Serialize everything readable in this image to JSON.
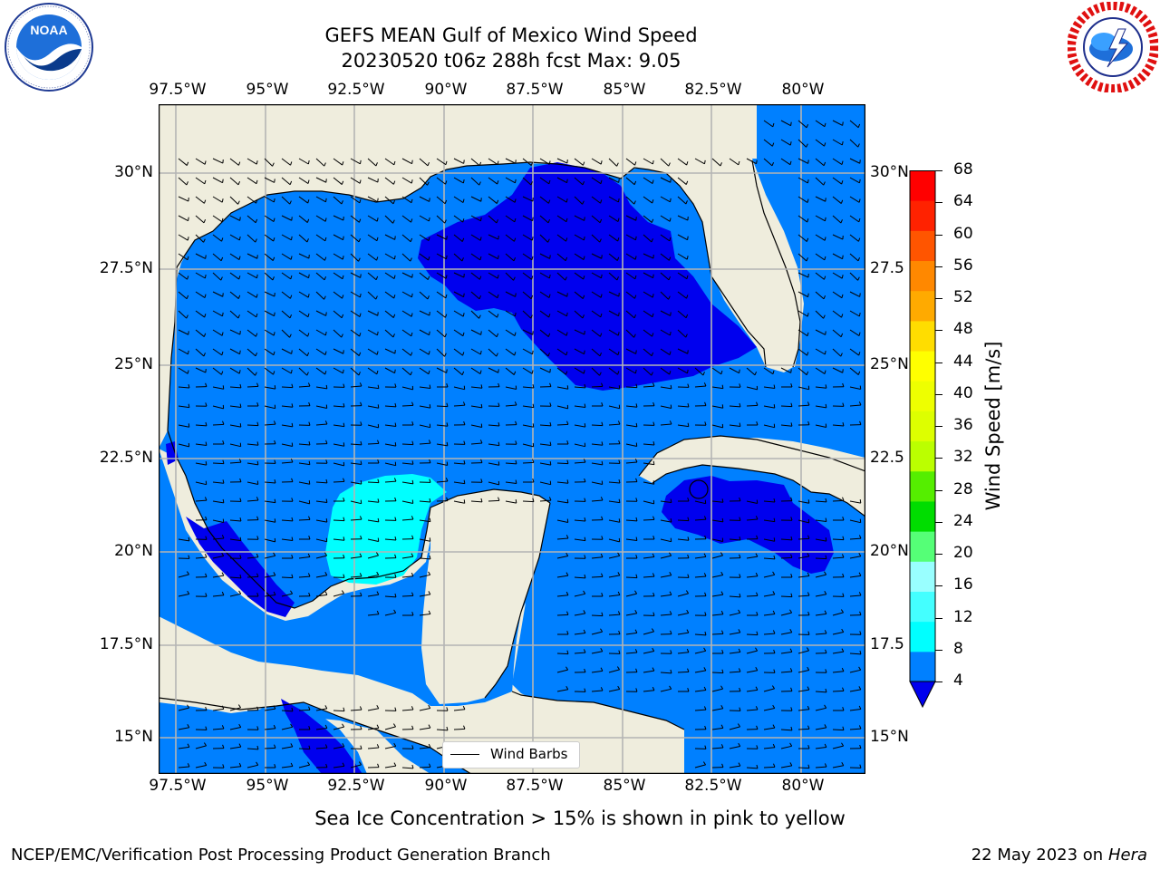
{
  "header": {
    "title_line1": "GEFS MEAN Gulf of Mexico Wind Speed",
    "title_line2": "20230520 t06z 288h fcst   Max: 9.05"
  },
  "logos": {
    "left": {
      "icon": "noaa-logo",
      "text": "NOAA",
      "ring_text": "NATIONAL OCEANIC AND ATMOSPHERIC ADMINISTRATION · U.S. DEPARTMENT OF COMMERCE"
    },
    "right": {
      "icon": "nws-logo",
      "ring_text": "NATIONAL WEATHER SERVICE"
    }
  },
  "map": {
    "lon_labels": [
      "97.5°W",
      "95°W",
      "92.5°W",
      "90°W",
      "87.5°W",
      "85°W",
      "82.5°W",
      "80°W"
    ],
    "lat_labels_left": [
      "30°N",
      "27.5°N",
      "25°N",
      "22.5°N",
      "20°N",
      "17.5°N",
      "15°N"
    ],
    "lat_labels_right": [
      "30°N",
      "27.5",
      "25°N",
      "22.5",
      "20°N",
      "17.5",
      "15°N"
    ],
    "legend_label": "Wind Barbs",
    "colors": {
      "land": "#efeddd",
      "band_4_8": "#0080ff",
      "below_4": "#0000ee",
      "band_8_12": "#00ffff",
      "grid": "#b4b4b4"
    }
  },
  "colorbar": {
    "label": "Wind Speed [m/s]",
    "ticks": [
      "68",
      "64",
      "60",
      "56",
      "52",
      "48",
      "44",
      "40",
      "36",
      "32",
      "28",
      "24",
      "20",
      "16",
      "12",
      "8",
      "4"
    ],
    "colors_bottom_to_top": [
      "#0080ff",
      "#00ffff",
      "#44ffff",
      "#99ffff",
      "#55ff77",
      "#00dd00",
      "#55ee00",
      "#bbff00",
      "#ddff00",
      "#eeff00",
      "#ffff00",
      "#ffdd00",
      "#ffaa00",
      "#ff8800",
      "#ff5500",
      "#ff2200",
      "#ff0000"
    ],
    "under_color": "#0000ee"
  },
  "footer": {
    "note": "Sea Ice Concentration > 15% is shown in pink to yellow",
    "credit": "NCEP/EMC/Verification Post Processing Product Generation Branch",
    "date": "22 May 2023 on",
    "machine": "Hera"
  }
}
